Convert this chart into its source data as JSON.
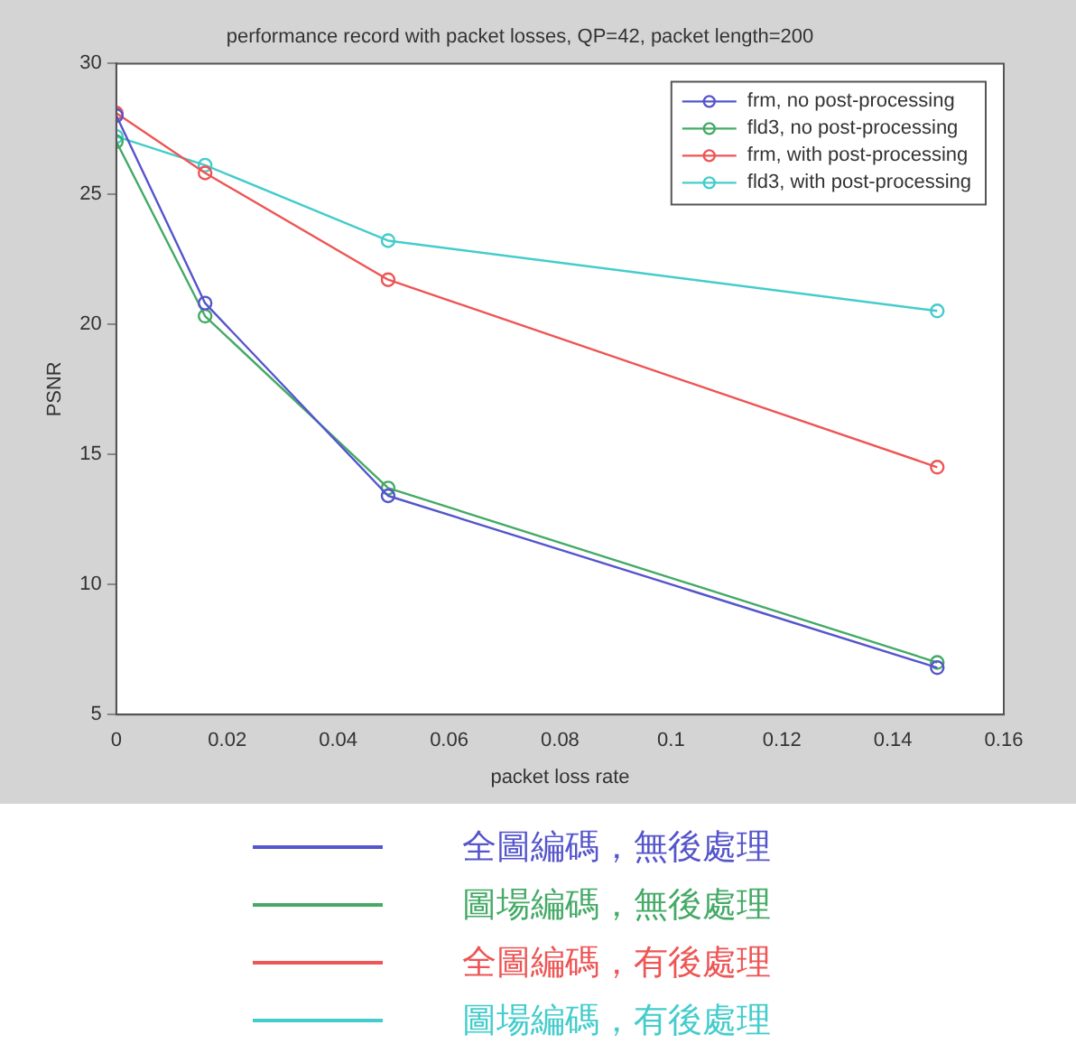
{
  "chart_data": {
    "type": "line",
    "title": "performance record with packet losses, QP=42, packet length=200",
    "xlabel": "packet loss rate",
    "ylabel": "PSNR",
    "x": [
      0,
      0.016,
      0.049,
      0.148
    ],
    "xlim": [
      0,
      0.16
    ],
    "xticks": [
      0,
      0.02,
      0.04,
      0.06,
      0.08,
      0.1,
      0.12,
      0.14,
      0.16
    ],
    "ylim": [
      5,
      30
    ],
    "yticks": [
      5,
      10,
      15,
      20,
      25,
      30
    ],
    "series": [
      {
        "name": "frm, no post-processing",
        "color": "#5555cc",
        "values": [
          28,
          20.8,
          13.4,
          6.8
        ]
      },
      {
        "name": "fld3, no post-processing",
        "color": "#44aa66",
        "values": [
          27,
          20.3,
          13.7,
          7
        ]
      },
      {
        "name": "frm, with post-processing",
        "color": "#ee5555",
        "values": [
          28.1,
          25.8,
          21.7,
          14.5
        ]
      },
      {
        "name": "fld3, with post-processing",
        "color": "#44cccc",
        "values": [
          27.2,
          26.1,
          23.2,
          20.5
        ]
      }
    ],
    "legend": "top right",
    "marker": "circle",
    "line_style": "solid",
    "grid": false,
    "annotations": [
      "全圖編碼，無後處理",
      "圖場編碼，無後處理",
      "全圖編碼，有後處理",
      "圖場編碼，有後處理"
    ]
  }
}
